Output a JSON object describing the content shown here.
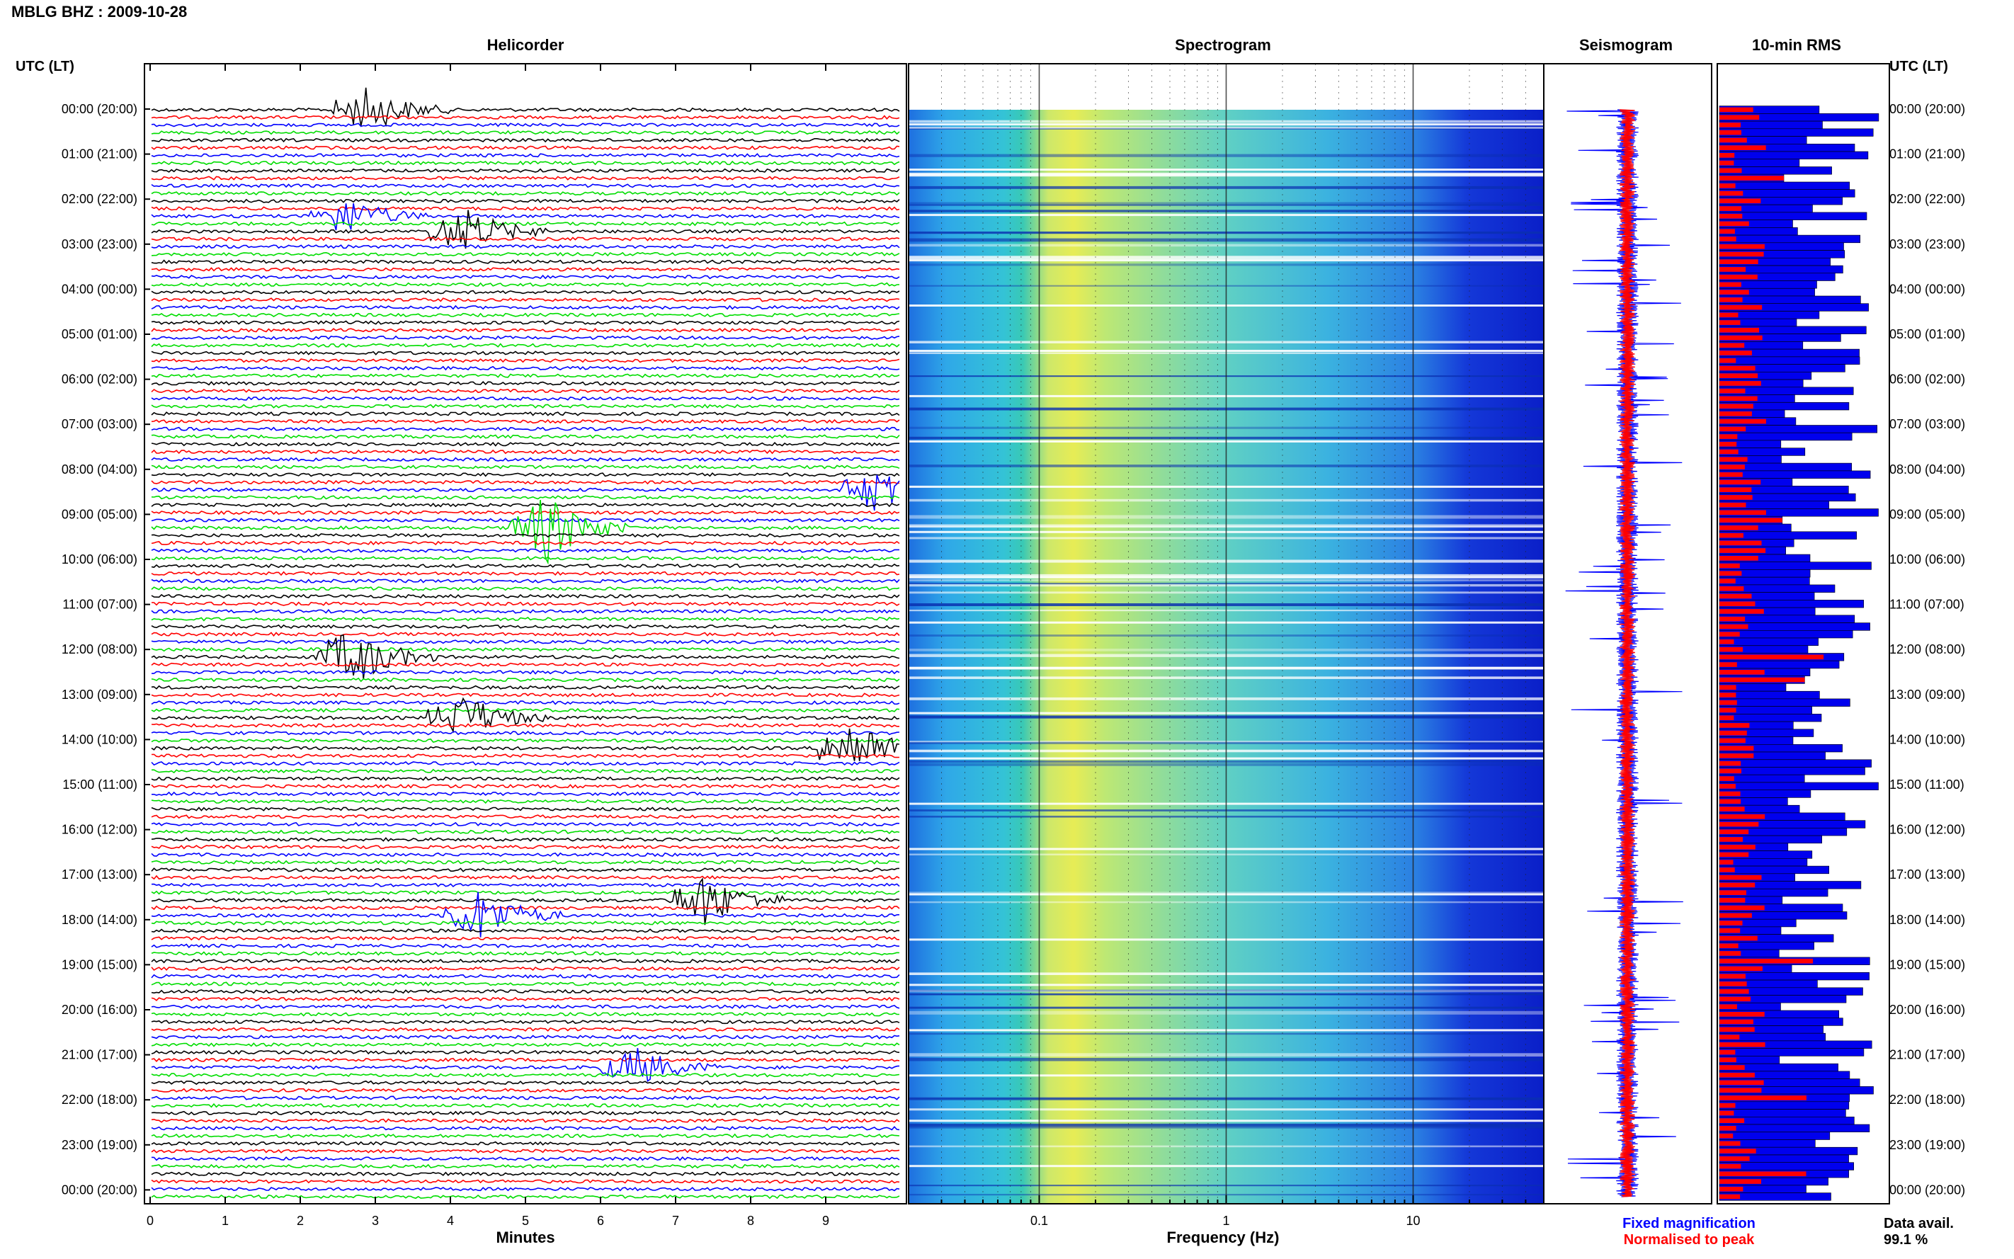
{
  "page": {
    "title": "MBLG BHZ : 2009-10-28",
    "utc_label_left": "UTC (LT)",
    "utc_label_right": "UTC (LT)"
  },
  "colors": {
    "trace_cycle": [
      "#000000",
      "#ff0000",
      "#0000ff",
      "#00dd00"
    ],
    "fixed": "#0000ff",
    "normalised": "#ff0000"
  },
  "time_labels": [
    "00:00 (20:00)",
    "01:00 (21:00)",
    "02:00 (22:00)",
    "03:00 (23:00)",
    "04:00 (00:00)",
    "05:00 (01:00)",
    "06:00 (02:00)",
    "07:00 (03:00)",
    "08:00 (04:00)",
    "09:00 (05:00)",
    "10:00 (06:00)",
    "11:00 (07:00)",
    "12:00 (08:00)",
    "13:00 (09:00)",
    "14:00 (10:00)",
    "15:00 (11:00)",
    "16:00 (12:00)",
    "17:00 (13:00)",
    "18:00 (14:00)",
    "19:00 (15:00)",
    "20:00 (16:00)",
    "21:00 (17:00)",
    "22:00 (18:00)",
    "23:00 (19:00)",
    "00:00 (20:00)"
  ],
  "chart_data": [
    {
      "type": "line",
      "title": "Helicorder",
      "xlabel": "Minutes",
      "xticks": [
        "0",
        "1",
        "2",
        "3",
        "4",
        "5",
        "6",
        "7",
        "8",
        "9"
      ],
      "xlim": [
        0,
        10
      ],
      "rows": 144,
      "events": [
        {
          "row": 0,
          "minute": 2.7,
          "amp": 3.0
        },
        {
          "row": 14,
          "minute": 2.4,
          "amp": 2.5
        },
        {
          "row": 16,
          "minute": 4.0,
          "amp": 3.0
        },
        {
          "row": 50,
          "minute": 9.5,
          "amp": 3.0
        },
        {
          "row": 55,
          "minute": 5.1,
          "amp": 4.5
        },
        {
          "row": 72,
          "minute": 2.5,
          "amp": 4.0
        },
        {
          "row": 80,
          "minute": 4.0,
          "amp": 3.0
        },
        {
          "row": 84,
          "minute": 9.2,
          "amp": 4.0
        },
        {
          "row": 104,
          "minute": 7.2,
          "amp": 3.5
        },
        {
          "row": 106,
          "minute": 4.2,
          "amp": 3.5
        },
        {
          "row": 126,
          "minute": 6.3,
          "amp": 2.5
        }
      ]
    },
    {
      "type": "heatmap",
      "title": "Spectrogram",
      "xlabel": "Frequency (Hz)",
      "xscale": "log",
      "xticks": [
        "0.1",
        "1",
        "10"
      ],
      "xlim": [
        0.02,
        50
      ]
    },
    {
      "type": "line",
      "title": "Seismogram",
      "legend": [
        "Fixed magnification",
        "Normalised to peak"
      ]
    },
    {
      "type": "bar",
      "title": "10-min RMS",
      "rows": 144,
      "note_label": "Data avail.",
      "note_value": "99.1 %"
    }
  ]
}
